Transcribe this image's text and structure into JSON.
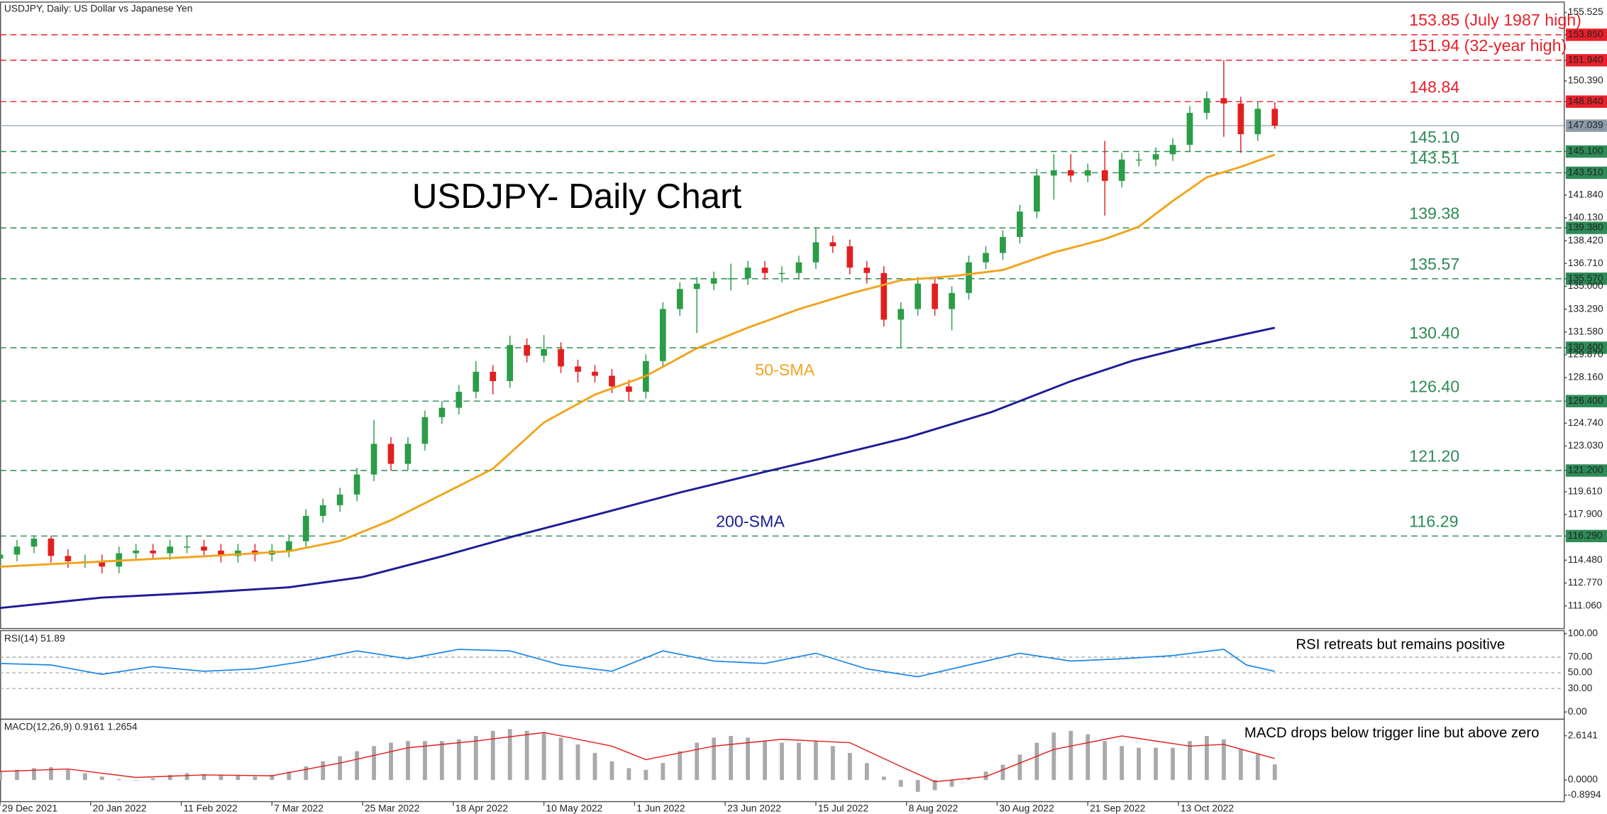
{
  "chart_data": {
    "type": "candlestick",
    "header": "USDJPY, Daily:  US Dollar vs Japanese Yen",
    "title": "USDJPY- Daily Chart",
    "xlim": [
      0,
      276
    ],
    "xticks": [
      {
        "value": 0,
        "label": "29 Dec 2021"
      },
      {
        "value": 16,
        "label": "20 Jan 2022"
      },
      {
        "value": 32,
        "label": "11 Feb 2022"
      },
      {
        "value": 48,
        "label": "7 Mar 2022"
      },
      {
        "value": 64,
        "label": "25 Mar 2022"
      },
      {
        "value": 80,
        "label": "18 Apr 2022"
      },
      {
        "value": 96,
        "label": "10 May 2022"
      },
      {
        "value": 112,
        "label": "1 Jun 2022"
      },
      {
        "value": 128,
        "label": "23 Jun 2022"
      },
      {
        "value": 144,
        "label": "15 Jul 2022"
      },
      {
        "value": 160,
        "label": "8 Aug 2022"
      },
      {
        "value": 176,
        "label": "30 Aug 2022"
      },
      {
        "value": 192,
        "label": "21 Sep 2022"
      },
      {
        "value": 208,
        "label": "13 Oct 2022"
      }
    ],
    "ylim": [
      109.36,
      156.3
    ],
    "yticks": [
      {
        "value": 155.525,
        "label": "155.525"
      },
      {
        "value": 153.85,
        "label": "153.850"
      },
      {
        "value": 151.94,
        "label": "151.940"
      },
      {
        "value": 150.39,
        "label": "150.390"
      },
      {
        "value": 148.84,
        "label": "148.840"
      },
      {
        "value": 145.1,
        "label": "145.100"
      },
      {
        "value": 143.51,
        "label": "143.510"
      },
      {
        "value": 141.84,
        "label": "141.840"
      },
      {
        "value": 140.13,
        "label": "140.130"
      },
      {
        "value": 139.38,
        "label": "139.380"
      },
      {
        "value": 138.42,
        "label": "138.420"
      },
      {
        "value": 136.71,
        "label": "136.710"
      },
      {
        "value": 135.57,
        "label": "135.570"
      },
      {
        "value": 135,
        "label": "135.000"
      },
      {
        "value": 133.29,
        "label": "133.290"
      },
      {
        "value": 131.58,
        "label": "131.580"
      },
      {
        "value": 130.4,
        "label": "130.400"
      },
      {
        "value": 129.87,
        "label": "129.870"
      },
      {
        "value": 128.16,
        "label": "128.160"
      },
      {
        "value": 126.4,
        "label": "126.400"
      },
      {
        "value": 124.74,
        "label": "124.740"
      },
      {
        "value": 123.03,
        "label": "123.030"
      },
      {
        "value": 121.2,
        "label": "121.200"
      },
      {
        "value": 119.61,
        "label": "119.610"
      },
      {
        "value": 117.9,
        "label": "117.900"
      },
      {
        "value": 116.29,
        "label": "116.290"
      },
      {
        "value": 114.48,
        "label": "114.480"
      },
      {
        "value": 112.77,
        "label": "112.770"
      },
      {
        "value": 111.06,
        "label": "111.060"
      }
    ],
    "last": {
      "value": 147.039,
      "label": "147.039"
    },
    "levels": [
      {
        "value": 153.85,
        "label": "153.85 (July 1987 high)",
        "color": "#e8202a"
      },
      {
        "value": 151.94,
        "label": "151.94 (32-year high)",
        "color": "#e8202a"
      },
      {
        "value": 148.84,
        "label": "148.84",
        "color": "#e8202a"
      },
      {
        "value": 145.1,
        "label": "145.10",
        "color": "#2e8b57"
      },
      {
        "value": 143.51,
        "label": "143.51",
        "color": "#2e8b57"
      },
      {
        "value": 139.38,
        "label": "139.38",
        "color": "#2e8b57"
      },
      {
        "value": 135.57,
        "label": "135.57",
        "color": "#2e8b57"
      },
      {
        "value": 130.4,
        "label": "130.40",
        "color": "#2e8b57"
      },
      {
        "value": 126.4,
        "label": "126.40",
        "color": "#2e8b57"
      },
      {
        "value": 121.2,
        "label": "121.20",
        "color": "#2e8b57"
      },
      {
        "value": 116.29,
        "label": "116.29",
        "color": "#2e8b57"
      }
    ],
    "candles": {
      "up_color": "#2a9d46",
      "down_color": "#e0201f",
      "x": [
        0,
        3,
        6,
        9,
        12,
        15,
        18,
        21,
        24,
        27,
        30,
        33,
        36,
        39,
        42,
        45,
        48,
        51,
        54,
        57,
        60,
        63,
        66,
        69,
        72,
        75,
        78,
        81,
        84,
        87,
        90,
        93,
        96,
        99,
        102,
        105,
        108,
        111,
        114,
        117,
        120,
        123,
        126,
        129,
        132,
        135,
        138,
        141,
        144,
        147,
        150,
        153,
        156,
        159,
        162,
        165,
        168,
        171,
        174,
        177,
        180,
        183,
        186,
        189,
        192,
        195,
        198,
        201,
        204,
        207,
        210,
        213,
        216,
        219,
        222,
        225
      ],
      "open": [
        114.6,
        114.9,
        115.5,
        116.1,
        114.8,
        114.4,
        114.4,
        114.0,
        115.0,
        115.2,
        115.0,
        115.5,
        115.5,
        115.2,
        114.8,
        115.2,
        114.9,
        115.2,
        115.9,
        117.8,
        118.6,
        119.4,
        120.9,
        123.2,
        121.7,
        123.2,
        125.2,
        125.9,
        127.1,
        128.6,
        127.9,
        130.6,
        129.8,
        130.3,
        129.0,
        128.6,
        128.3,
        127.5,
        127.1,
        129.4,
        133.3,
        134.8,
        135.2,
        135.6,
        135.6,
        136.4,
        136.0,
        136.0,
        136.8,
        138.3,
        138.0,
        136.4,
        136.0,
        132.5,
        133.3,
        135.2,
        133.3,
        134.5,
        136.8,
        137.5,
        138.7,
        140.6,
        143.3,
        143.7,
        143.3,
        143.7,
        142.9,
        144.5,
        144.5,
        144.9,
        145.6,
        148.0,
        149.1,
        148.7,
        146.4,
        148.3
      ],
      "high": [
        115.4,
        116.0,
        116.35,
        116.3,
        115.3,
        114.9,
        114.9,
        115.5,
        115.7,
        115.7,
        116.0,
        116.3,
        116.0,
        115.7,
        115.7,
        115.7,
        115.7,
        116.4,
        118.3,
        119.1,
        119.9,
        121.4,
        125.0,
        123.7,
        123.7,
        125.7,
        126.4,
        127.6,
        129.4,
        129.1,
        131.3,
        131.1,
        131.35,
        130.8,
        129.5,
        129.1,
        128.8,
        128.0,
        129.9,
        133.8,
        135.3,
        135.7,
        136.1,
        136.7,
        136.9,
        136.9,
        136.5,
        137.3,
        139.4,
        138.8,
        138.5,
        136.9,
        136.5,
        133.8,
        135.7,
        135.7,
        135.0,
        137.3,
        138.0,
        139.2,
        141.1,
        143.8,
        144.9,
        144.9,
        144.2,
        145.9,
        145.0,
        145.0,
        145.4,
        146.1,
        148.5,
        149.6,
        151.94,
        149.2,
        148.8,
        148.8
      ],
      "low": [
        114.1,
        114.4,
        115.0,
        114.3,
        113.9,
        113.9,
        113.5,
        113.5,
        114.5,
        114.5,
        114.5,
        115.0,
        114.7,
        114.3,
        114.3,
        114.4,
        114.4,
        114.7,
        115.4,
        117.3,
        118.1,
        118.9,
        120.4,
        121.2,
        121.2,
        122.7,
        124.7,
        125.4,
        126.6,
        126.9,
        127.4,
        129.3,
        129.3,
        128.5,
        127.8,
        127.8,
        127.0,
        126.4,
        126.6,
        128.9,
        132.8,
        131.5,
        134.7,
        134.7,
        135.1,
        135.5,
        135.3,
        135.5,
        136.3,
        137.5,
        135.9,
        135.2,
        132.0,
        130.4,
        132.8,
        132.8,
        131.7,
        134.0,
        136.3,
        137.0,
        138.2,
        140.1,
        141.5,
        142.8,
        142.8,
        140.3,
        142.4,
        144.0,
        144.0,
        144.4,
        145.1,
        147.5,
        146.2,
        145.0,
        145.9,
        146.8
      ],
      "close": [
        114.9,
        115.5,
        116.1,
        114.8,
        114.4,
        114.4,
        114.0,
        115.0,
        115.2,
        115.0,
        115.5,
        115.5,
        115.2,
        114.8,
        115.2,
        114.9,
        115.2,
        115.9,
        117.8,
        118.6,
        119.4,
        120.9,
        123.2,
        121.7,
        123.2,
        125.2,
        125.9,
        127.1,
        128.6,
        127.9,
        130.6,
        129.8,
        130.3,
        129.0,
        128.6,
        128.3,
        127.5,
        127.1,
        129.4,
        133.3,
        134.8,
        135.2,
        135.6,
        135.6,
        136.4,
        136.0,
        136.0,
        136.8,
        138.3,
        138.0,
        136.4,
        136.0,
        132.5,
        133.3,
        135.2,
        133.3,
        134.5,
        136.8,
        137.5,
        138.7,
        140.6,
        143.3,
        143.7,
        143.3,
        143.7,
        142.9,
        144.5,
        144.5,
        144.9,
        145.6,
        148.0,
        149.1,
        148.7,
        146.4,
        148.3,
        147.04
      ]
    },
    "series": [
      {
        "name": "50-SMA",
        "color": "#f2a31c",
        "x": [
          0,
          18,
          36,
          51,
          60,
          69,
          78,
          87,
          96,
          105,
          114,
          123,
          132,
          141,
          150,
          159,
          168,
          177,
          186,
          195,
          201,
          207,
          213,
          219,
          225
        ],
        "values": [
          113.99,
          114.38,
          114.77,
          115.15,
          115.92,
          117.47,
          119.4,
          121.33,
          124.8,
          126.89,
          128.28,
          130.36,
          131.9,
          133.29,
          134.45,
          135.45,
          135.76,
          136.22,
          137.54,
          138.54,
          139.47,
          141.4,
          143.17,
          143.95,
          144.87
        ]
      },
      {
        "name": "200-SMA",
        "color": "#1c1c96",
        "x": [
          0,
          18,
          36,
          51,
          64,
          78,
          91,
          105,
          120,
          135,
          145,
          160,
          175,
          189,
          200,
          211,
          225
        ],
        "values": [
          110.9,
          111.68,
          112.06,
          112.45,
          113.22,
          114.77,
          116.31,
          117.86,
          119.55,
          121.1,
          122.1,
          123.65,
          125.58,
          127.89,
          129.44,
          130.6,
          131.9
        ]
      }
    ],
    "rsi": {
      "title": "RSI(14) 51.89",
      "annotation": "RSI retreats but remains positive",
      "color": "#1e88e5",
      "ylim": [
        -9.2,
        103.9
      ],
      "yticks": [
        {
          "value": 100,
          "label": "100.00"
        },
        {
          "value": 70,
          "label": "70.00"
        },
        {
          "value": 50,
          "label": "50.00"
        },
        {
          "value": 30,
          "label": "30.00"
        },
        {
          "value": 0,
          "label": "0.00"
        }
      ],
      "x": [
        0,
        9,
        18,
        27,
        36,
        45,
        54,
        63,
        72,
        81,
        90,
        99,
        108,
        117,
        126,
        135,
        144,
        153,
        162,
        171,
        180,
        189,
        198,
        207,
        216,
        220,
        225
      ],
      "values": [
        62,
        60,
        48,
        58,
        52,
        55,
        65,
        78,
        68,
        80,
        78,
        60,
        52,
        78,
        65,
        62,
        75,
        55,
        45,
        60,
        75,
        65,
        68,
        72,
        80,
        60,
        51.89
      ]
    },
    "macd": {
      "title": "MACD(12,26,9) 0.9161 1.2654",
      "annotation": "MACD drops below trigger line but above zero",
      "ylim": [
        -1.277,
        3.587
      ],
      "yticks": [
        {
          "value": 2.6141,
          "label": "2.6141"
        },
        {
          "value": 0,
          "label": "0.0000"
        },
        {
          "value": -0.8994,
          "label": "-0.8994"
        }
      ],
      "hist": {
        "color": "#a9a9a9",
        "x": [
          0,
          3,
          6,
          9,
          12,
          15,
          18,
          21,
          24,
          27,
          30,
          33,
          36,
          39,
          42,
          45,
          48,
          51,
          54,
          57,
          60,
          63,
          66,
          69,
          72,
          75,
          78,
          81,
          84,
          87,
          90,
          93,
          96,
          99,
          102,
          105,
          108,
          111,
          114,
          117,
          120,
          123,
          126,
          129,
          132,
          135,
          138,
          141,
          144,
          147,
          150,
          153,
          156,
          159,
          162,
          165,
          168,
          171,
          174,
          177,
          180,
          183,
          186,
          189,
          192,
          195,
          198,
          201,
          204,
          207,
          210,
          213,
          216,
          219,
          222,
          225
        ],
        "values": [
          0.5,
          0.6,
          0.7,
          0.75,
          0.6,
          0.4,
          0.2,
          0.05,
          0,
          0.1,
          0.3,
          0.4,
          0.35,
          0.3,
          0.25,
          0.2,
          0.3,
          0.5,
          0.8,
          1.1,
          1.4,
          1.7,
          2.0,
          2.2,
          2.3,
          2.3,
          2.3,
          2.4,
          2.6,
          2.9,
          3.0,
          2.9,
          2.8,
          2.5,
          2.1,
          1.6,
          1.1,
          0.7,
          0.6,
          1.0,
          1.7,
          2.2,
          2.5,
          2.6,
          2.5,
          2.3,
          2.2,
          2.2,
          2.3,
          2.0,
          1.6,
          1.0,
          0.2,
          -0.4,
          -0.7,
          -0.6,
          -0.4,
          0.1,
          0.5,
          0.9,
          1.5,
          2.2,
          2.8,
          2.9,
          2.7,
          2.3,
          2.0,
          1.9,
          1.9,
          1.9,
          2.3,
          2.6,
          2.4,
          1.8,
          1.5,
          0.92
        ]
      },
      "signal": {
        "color": "#e0201f",
        "x": [
          0,
          12,
          24,
          36,
          48,
          60,
          72,
          84,
          96,
          108,
          114,
          126,
          138,
          150,
          159,
          165,
          174,
          186,
          198,
          210,
          216,
          225
        ],
        "values": [
          0.5,
          0.65,
          0.15,
          0.3,
          0.25,
          1.0,
          1.9,
          2.3,
          2.8,
          2.0,
          1.2,
          2.0,
          2.4,
          2.2,
          0.8,
          -0.1,
          0.2,
          1.8,
          2.6,
          2.0,
          2.1,
          1.2654
        ]
      }
    }
  }
}
